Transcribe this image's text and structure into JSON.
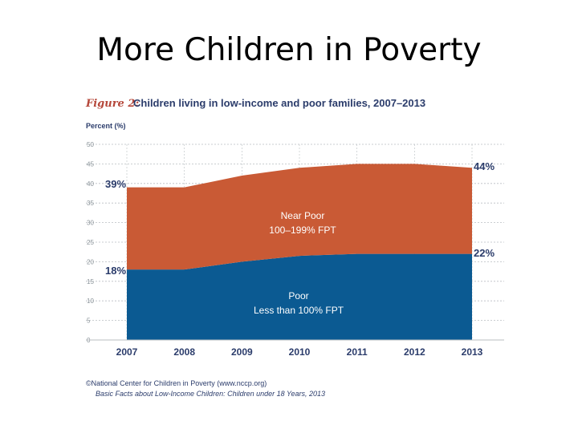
{
  "slide": {
    "title": "More Children in Poverty"
  },
  "figure": {
    "label": "Figure 2:",
    "caption": "Children living in low-income and poor families, 2007–2013",
    "source_line_1": "©National Center for Children in Poverty (www.nccp.org)",
    "source_line_2": "Basic Facts about Low-Income Children: Children under 18 Years, 2013"
  },
  "colors": {
    "poor": "#0b5a92",
    "near_poor": "#c95a35",
    "accent_red": "#b5473a",
    "navy": "#2b3c6b",
    "label_grey": "#8a9399",
    "grid": "#b9bec2"
  },
  "chart_data": {
    "type": "area",
    "stacked": true,
    "ylabel": "Percent (%)",
    "ylim": [
      0,
      50
    ],
    "yticks": [
      0,
      5,
      10,
      15,
      20,
      25,
      30,
      35,
      40,
      45,
      50
    ],
    "x": [
      "2007",
      "2008",
      "2009",
      "2010",
      "2011",
      "2012",
      "2013"
    ],
    "series": [
      {
        "name": "Poor",
        "sublabel": "Less than 100% FPT",
        "values": [
          18,
          18,
          20,
          21.5,
          22,
          22,
          22
        ]
      },
      {
        "name": "Near Poor",
        "sublabel": "100–199% FPT",
        "values": [
          21,
          21,
          22,
          22.5,
          23,
          23,
          22
        ]
      }
    ],
    "annotations": {
      "start_total": "39%",
      "start_poor": "18%",
      "end_total": "44%",
      "end_poor": "22%"
    },
    "grid": true
  }
}
